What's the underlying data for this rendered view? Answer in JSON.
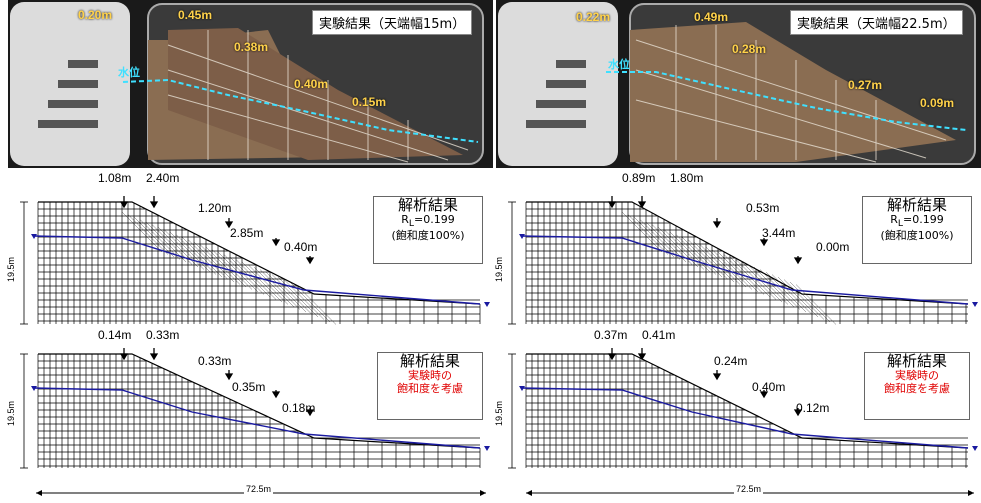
{
  "experiments": [
    {
      "title": "実験結果（天端幅15m）",
      "water_label": "水位",
      "labels": [
        "0.20m",
        "0.45m",
        "0.38m",
        "0.40m",
        "0.15m"
      ]
    },
    {
      "title": "実験結果（天端幅22.5m）",
      "water_label": "水位",
      "labels": [
        "0.22m",
        "0.49m",
        "0.28m",
        "0.27m",
        "0.09m"
      ]
    }
  ],
  "analyses": [
    {
      "title": "解析結果",
      "line1": "R",
      "line1_sub": "L",
      "line1_val": "=0.199",
      "line2": "(飽和度100%)",
      "height": "19.5m",
      "labels": [
        "1.08m",
        "2.40m",
        "1.20m",
        "2.85m",
        "0.40m"
      ]
    },
    {
      "title": "解析結果",
      "line1": "R",
      "line1_sub": "L",
      "line1_val": "=0.199",
      "line2": "(飽和度100%)",
      "height": "19.5m",
      "labels": [
        "0.89m",
        "1.80m",
        "0.53m",
        "3.44m",
        "0.00m"
      ]
    },
    {
      "title": "解析結果",
      "red1": "実験時の",
      "red2": "飽和度を考慮",
      "height": "19.5m",
      "labels": [
        "0.14m",
        "0.33m",
        "0.33m",
        "0.35m",
        "0.18m"
      ]
    },
    {
      "title": "解析結果",
      "red1": "実験時の",
      "red2": "飽和度を考慮",
      "height": "19.5m",
      "labels": [
        "0.37m",
        "0.41m",
        "0.24m",
        "0.40m",
        "0.12m"
      ]
    }
  ],
  "bottom": {
    "left": "72.5m",
    "right": "72.5m"
  },
  "colors": {
    "water": "#3fe0ff",
    "label": "#ffd24a",
    "blue_line": "#1a1aa0",
    "red": "#e00000"
  }
}
